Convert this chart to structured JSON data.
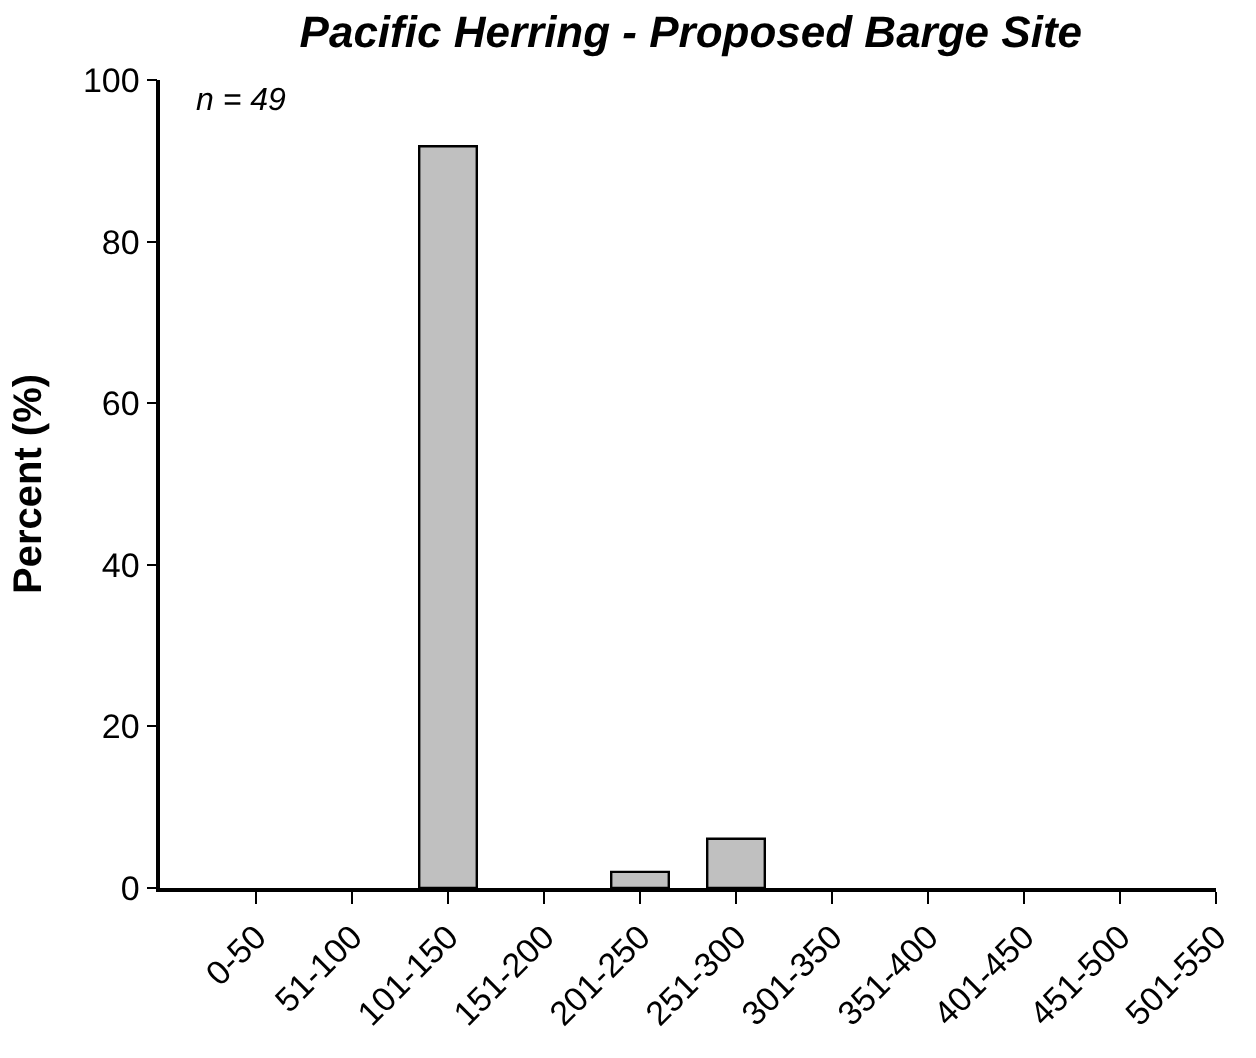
{
  "chart_data": {
    "type": "bar",
    "title": "Pacific Herring - Proposed Barge Site",
    "ylabel": "Percent (%)",
    "categories": [
      "0-50",
      "51-100",
      "101-150",
      "151-200",
      "201-250",
      "251-300",
      "301-350",
      "351-400",
      "401-450",
      "451-500",
      "501-550"
    ],
    "values": [
      0,
      0,
      91.8,
      0,
      2.0,
      6.1,
      0,
      0,
      0,
      0,
      0
    ],
    "color": "#c0c0c0",
    "ylim": [
      0,
      100
    ],
    "yticks": [
      0,
      20,
      40,
      60,
      80,
      100
    ],
    "legend": false,
    "annotations": [
      "n = 49"
    ]
  }
}
